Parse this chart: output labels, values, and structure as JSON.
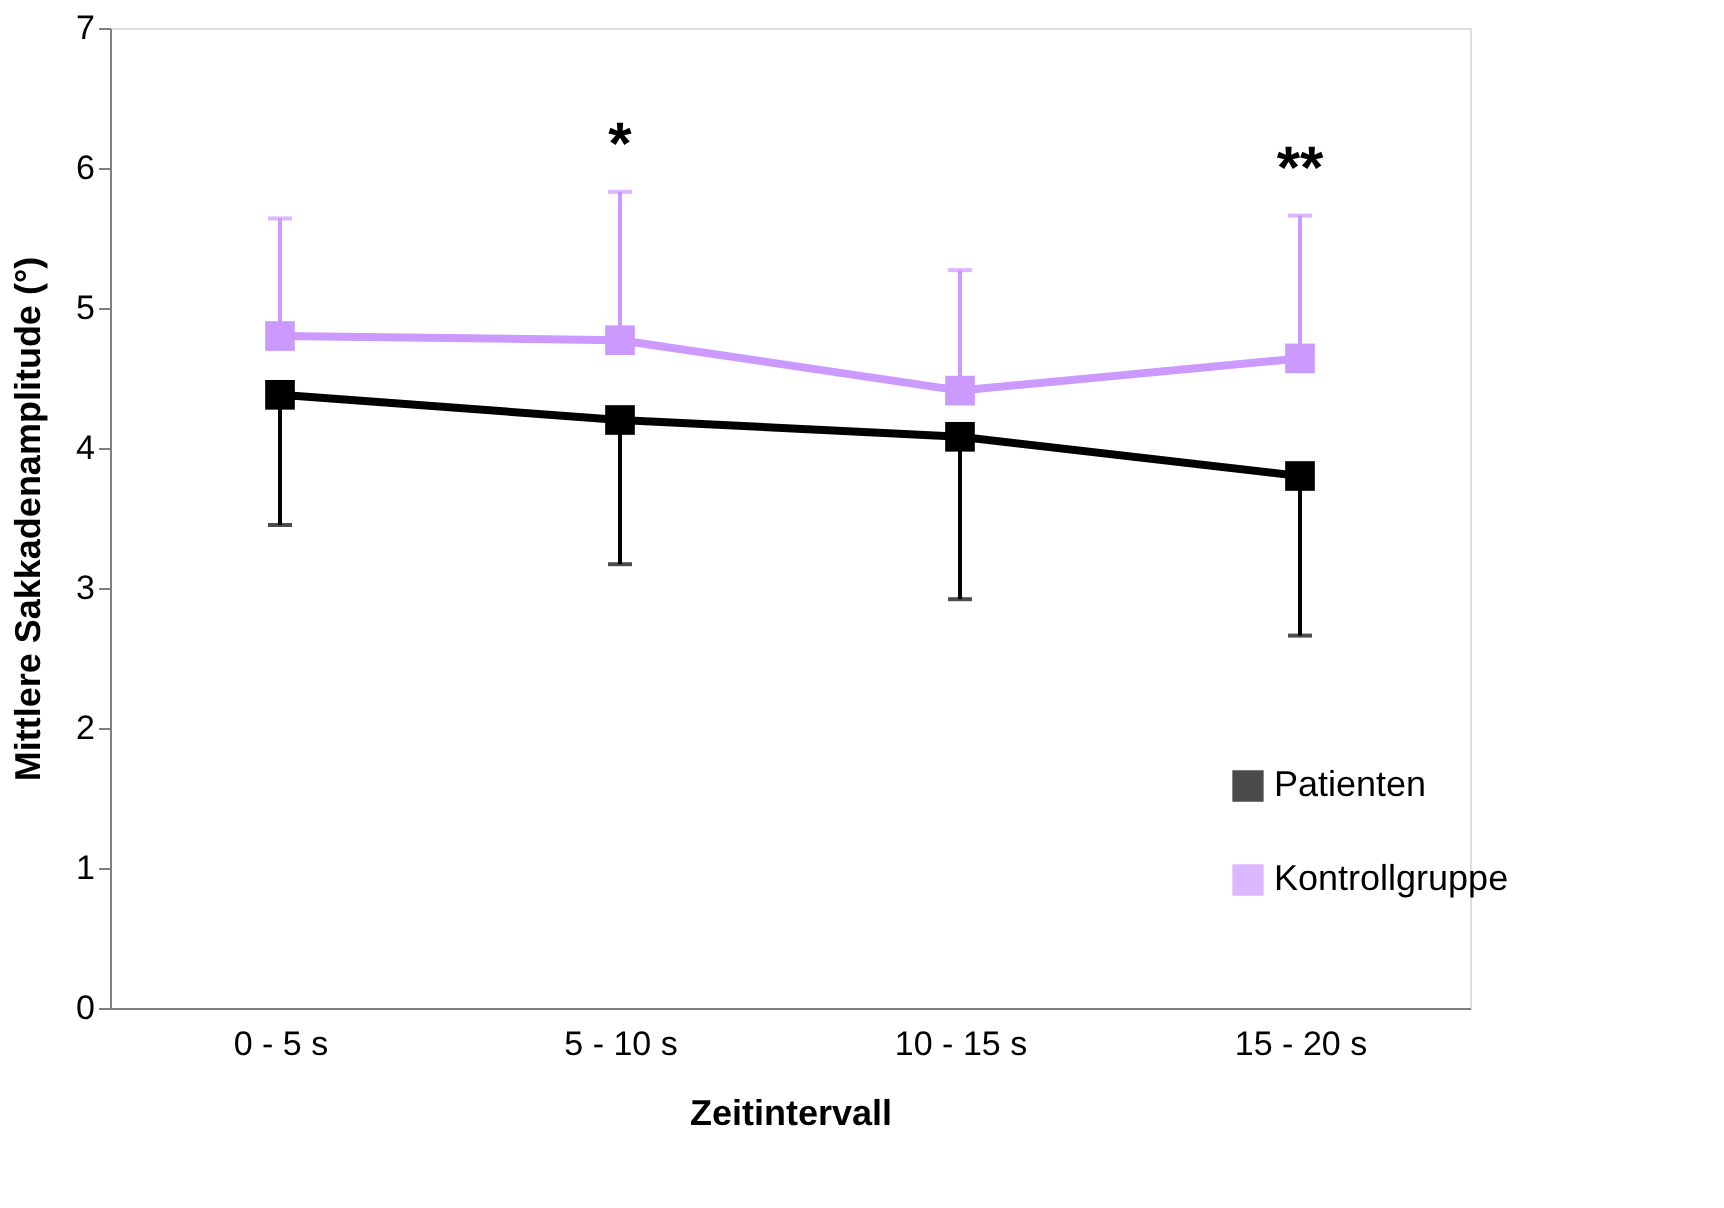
{
  "chart_data": {
    "type": "line",
    "xlabel": "Zeitintervall",
    "ylabel": "Mittlere Sakkadenamplitude  (°)",
    "categories": [
      "0 - 5 s",
      "5 - 10 s",
      "10 - 15 s",
      "15 - 20 s"
    ],
    "series": [
      {
        "name": "Patienten",
        "color": "#000000",
        "values": [
          4.38,
          4.2,
          4.08,
          3.8
        ],
        "errors": [
          [
            3.45,
            4.38
          ],
          [
            3.17,
            4.2
          ],
          [
            2.92,
            4.08
          ],
          [
            2.66,
            3.8
          ]
        ]
      },
      {
        "name": "Kontrollgruppe",
        "color": "#cc99ff",
        "values": [
          4.8,
          4.77,
          4.41,
          4.64
        ],
        "errors": [
          [
            4.8,
            5.64
          ],
          [
            4.77,
            5.83
          ],
          [
            4.41,
            5.27
          ],
          [
            4.64,
            5.66
          ]
        ]
      }
    ],
    "annotations": [
      "*",
      "**"
    ],
    "ylim": [
      0,
      7
    ],
    "yticks": [
      0,
      1,
      2,
      3,
      4,
      5,
      6,
      7
    ],
    "grid": false,
    "legend": "bottom right",
    "marker": "square",
    "line_style": "solid"
  }
}
